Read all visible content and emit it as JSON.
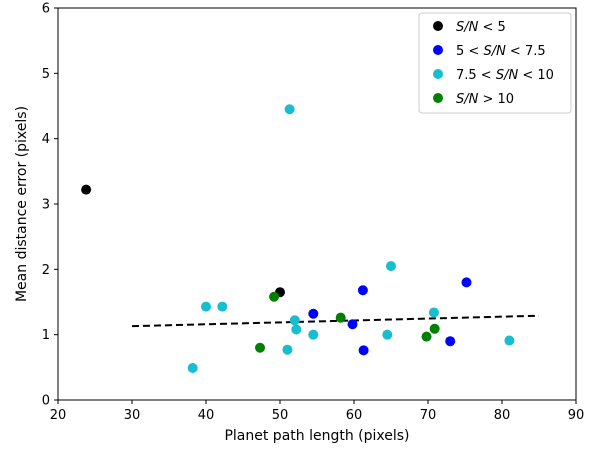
{
  "chart_data": {
    "type": "scatter",
    "xlabel": "Planet path length (pixels)",
    "ylabel": "Mean distance error (pixels)",
    "xlim": [
      20,
      90
    ],
    "ylim": [
      0,
      6
    ],
    "xticks": [
      "20",
      "30",
      "40",
      "50",
      "60",
      "70",
      "80",
      "90"
    ],
    "yticks": [
      "0",
      "1",
      "2",
      "3",
      "4",
      "5",
      "6"
    ],
    "grid": false,
    "legend_position": "top-right",
    "series": [
      {
        "name": "S/N < 5",
        "legend": {
          "p1": "",
          "var": "S/N",
          "p2": " < 5"
        },
        "color": "#000000",
        "points": [
          [
            23.8,
            3.22
          ],
          [
            50.0,
            1.65
          ]
        ]
      },
      {
        "name": "5 < S/N < 7.5",
        "legend": {
          "p1": "5 < ",
          "var": "S/N",
          "p2": " < 7.5"
        },
        "color": "#0000ff",
        "points": [
          [
            54.5,
            1.32
          ],
          [
            59.8,
            1.16
          ],
          [
            61.2,
            1.68
          ],
          [
            61.3,
            0.76
          ],
          [
            73.0,
            0.9
          ],
          [
            75.2,
            1.8
          ]
        ]
      },
      {
        "name": "7.5 < S/N < 10",
        "legend": {
          "p1": "7.5 < ",
          "var": "S/N",
          "p2": " < 10"
        },
        "color": "#17becf",
        "points": [
          [
            38.2,
            0.49
          ],
          [
            40.0,
            1.43
          ],
          [
            42.2,
            1.43
          ],
          [
            51.0,
            0.77
          ],
          [
            51.3,
            4.45
          ],
          [
            52.0,
            1.22
          ],
          [
            52.2,
            1.08
          ],
          [
            54.5,
            1.0
          ],
          [
            64.5,
            1.0
          ],
          [
            65.0,
            2.05
          ],
          [
            70.8,
            1.34
          ],
          [
            81.0,
            0.91
          ]
        ]
      },
      {
        "name": "S/N > 10",
        "legend": {
          "p1": "",
          "var": "S/N",
          "p2": " > 10"
        },
        "color": "#008000",
        "points": [
          [
            47.3,
            0.8
          ],
          [
            49.2,
            1.58
          ],
          [
            58.2,
            1.26
          ],
          [
            69.8,
            0.97
          ],
          [
            70.9,
            1.09
          ]
        ]
      }
    ],
    "fit_line": {
      "style": "dashed",
      "color": "#000000",
      "x": [
        30,
        85
      ],
      "y": [
        1.13,
        1.29
      ]
    }
  }
}
